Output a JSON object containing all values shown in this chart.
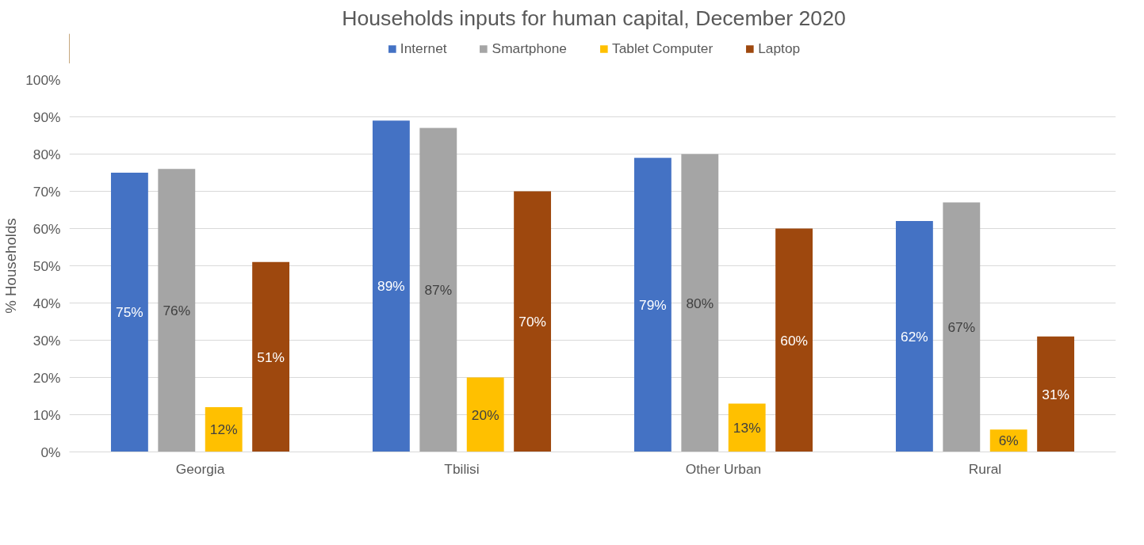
{
  "chart_data": {
    "type": "bar",
    "title": "Households inputs for human capital, December 2020",
    "ylabel": "% Households",
    "categories": [
      "Georgia",
      "Tbilisi",
      "Other Urban",
      "Rural"
    ],
    "series": [
      {
        "name": "Internet",
        "color": "#4472c4",
        "values": [
          75,
          89,
          79,
          62
        ],
        "value_labels": [
          "75%",
          "89%",
          "79%",
          "62%"
        ]
      },
      {
        "name": "Smartphone",
        "color": "#a5a5a5",
        "values": [
          76,
          87,
          80,
          67
        ],
        "value_labels": [
          "76%",
          "87%",
          "80%",
          "67%"
        ]
      },
      {
        "name": "Tablet Computer",
        "color": "#ffc000",
        "values": [
          12,
          20,
          13,
          6
        ],
        "value_labels": [
          "12%",
          "20%",
          "13%",
          "6%"
        ]
      },
      {
        "name": "Laptop",
        "color": "#9e480e",
        "values": [
          51,
          70,
          60,
          31
        ],
        "value_labels": [
          "51%",
          "70%",
          "60%",
          "31%"
        ]
      }
    ],
    "ylim": [
      0,
      100
    ],
    "yticks": [
      {
        "value": 0,
        "label": "0%"
      },
      {
        "value": 10,
        "label": "10%"
      },
      {
        "value": 20,
        "label": "20%"
      },
      {
        "value": 30,
        "label": "30%"
      },
      {
        "value": 40,
        "label": "40%"
      },
      {
        "value": 50,
        "label": "50%"
      },
      {
        "value": 60,
        "label": "60%"
      },
      {
        "value": 70,
        "label": "70%"
      },
      {
        "value": 80,
        "label": "80%"
      },
      {
        "value": 90,
        "label": "90%"
      },
      {
        "value": 100,
        "label": "100%"
      }
    ],
    "grid": "y",
    "legend": "top"
  }
}
